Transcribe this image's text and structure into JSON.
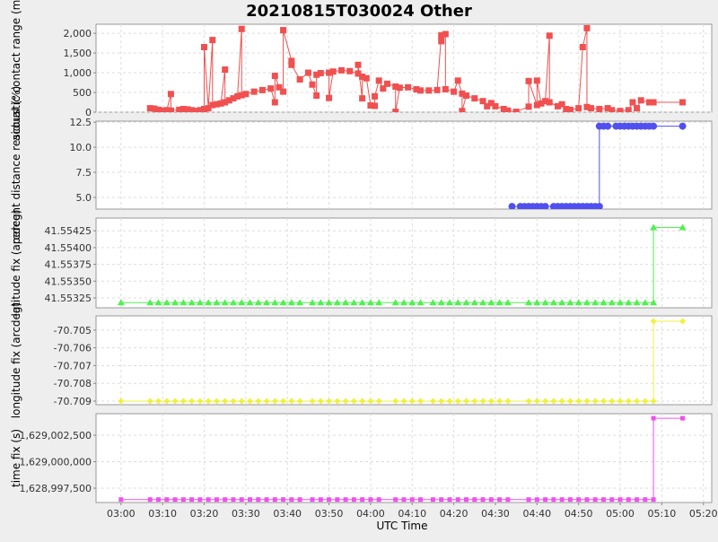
{
  "chart_data": [
    {
      "type": "line",
      "title": "20210815T030024 Other",
      "ylabel": "acoustic contact range (m)",
      "color": "#f05050",
      "marker": "square",
      "x": [
        "03:07",
        "03:08",
        "03:09",
        "03:10",
        "03:11",
        "03:12",
        "03:12",
        "03:14",
        "03:15",
        "03:16",
        "03:17",
        "03:18",
        "03:19",
        "03:20",
        "03:20",
        "03:21",
        "03:22",
        "03:22",
        "03:23",
        "03:24",
        "03:25",
        "03:25",
        "03:26",
        "03:27",
        "03:28",
        "03:29",
        "03:29",
        "03:30",
        "03:32",
        "03:34",
        "03:36",
        "03:37",
        "03:37",
        "03:38",
        "03:39",
        "03:39",
        "03:41",
        "03:41",
        "03:43",
        "03:45",
        "03:46",
        "03:47",
        "03:47",
        "03:48",
        "03:50",
        "03:50",
        "03:51",
        "03:53",
        "03:55",
        "03:57",
        "03:57",
        "03:58",
        "03:58",
        "03:59",
        "04:00",
        "04:01",
        "04:01",
        "04:02",
        "04:03",
        "04:04",
        "04:06",
        "04:06",
        "04:07",
        "04:09",
        "04:11",
        "04:12",
        "04:14",
        "04:16",
        "04:17",
        "04:17",
        "04:18",
        "04:18",
        "04:20",
        "04:21",
        "04:22",
        "04:22",
        "04:23",
        "04:25",
        "04:27",
        "04:28",
        "04:29",
        "04:30",
        "04:32",
        "04:33",
        "04:35",
        "04:38",
        "04:38",
        "04:40",
        "04:40",
        "04:41",
        "04:42",
        "04:43",
        "04:43",
        "04:45",
        "04:46",
        "04:47",
        "04:48",
        "04:50",
        "04:51",
        "04:52",
        "04:52",
        "04:53",
        "04:55",
        "04:57",
        "04:58",
        "05:00",
        "05:02",
        "05:03",
        "05:04",
        "05:05",
        "05:07",
        "05:08",
        "05:15"
      ],
      "values": [
        100,
        90,
        60,
        40,
        50,
        460,
        40,
        60,
        80,
        70,
        50,
        30,
        50,
        80,
        1650,
        100,
        1830,
        180,
        200,
        220,
        1080,
        250,
        300,
        350,
        400,
        2110,
        430,
        460,
        520,
        560,
        600,
        250,
        920,
        630,
        520,
        2080,
        1300,
        1200,
        830,
        1000,
        700,
        420,
        950,
        990,
        1000,
        360,
        1030,
        1060,
        1040,
        980,
        1200,
        350,
        900,
        860,
        170,
        160,
        400,
        800,
        600,
        720,
        650,
        10,
        620,
        630,
        580,
        550,
        550,
        560,
        1950,
        1800,
        1980,
        580,
        520,
        800,
        470,
        30,
        420,
        350,
        280,
        150,
        230,
        150,
        80,
        40,
        10,
        140,
        790,
        180,
        800,
        220,
        280,
        1940,
        250,
        150,
        200,
        80,
        60,
        100,
        1650,
        2130,
        130,
        100,
        80,
        100,
        50,
        30,
        50,
        250,
        100,
        300,
        250,
        250,
        250
      ],
      "ylim": [
        0,
        2230
      ],
      "yticks": [
        0,
        500,
        {
          "value": 1000,
          "label": "1,000"
        },
        {
          "value": 1500,
          "label": "1,500"
        },
        {
          "value": 2000,
          "label": "2,000"
        }
      ],
      "grid": true
    },
    {
      "type": "line",
      "ylabel": "percent distance residual (%)",
      "color": "#5050f0",
      "marker": "circle",
      "x": [
        "04:34",
        "04:36",
        "04:37",
        "04:38",
        "04:39",
        "04:40",
        "04:41",
        "04:42",
        "04:44",
        "04:45",
        "04:46",
        "04:47",
        "04:48",
        "04:49",
        "04:50",
        "04:51",
        "04:52",
        "04:53",
        "04:54",
        "04:55",
        "04:55",
        "04:56",
        "04:57",
        "04:59",
        "05:00",
        "05:01",
        "05:02",
        "05:03",
        "05:04",
        "05:05",
        "05:06",
        "05:07",
        "05:08",
        "05:15"
      ],
      "values": [
        4.1,
        4.1,
        4.1,
        4.1,
        4.1,
        4.1,
        4.1,
        4.1,
        4.1,
        4.1,
        4.1,
        4.1,
        4.1,
        4.1,
        4.1,
        4.1,
        4.1,
        4.1,
        4.1,
        4.1,
        12.1,
        12.1,
        12.1,
        12.1,
        12.1,
        12.1,
        12.1,
        12.1,
        12.1,
        12.1,
        12.1,
        12.1,
        12.1,
        12.1
      ],
      "ylim": [
        3.84,
        12.6
      ],
      "yticks": [
        {
          "value": 5,
          "label": "5.0"
        },
        7.5,
        {
          "value": 10,
          "label": "10.0"
        },
        12.5
      ],
      "grid": true
    },
    {
      "type": "line",
      "ylabel": "latitude fix (arcdeg)",
      "color": "#50f050",
      "marker": "triangle",
      "x": [
        "03:00",
        "03:07",
        "03:09",
        "03:11",
        "03:13",
        "03:15",
        "03:17",
        "03:19",
        "03:21",
        "03:23",
        "03:25",
        "03:27",
        "03:29",
        "03:31",
        "03:33",
        "03:35",
        "03:37",
        "03:39",
        "03:41",
        "03:43",
        "03:46",
        "03:48",
        "03:50",
        "03:52",
        "03:54",
        "03:56",
        "03:58",
        "04:00",
        "04:02",
        "04:06",
        "04:08",
        "04:10",
        "04:12",
        "04:15",
        "04:17",
        "04:19",
        "04:21",
        "04:23",
        "04:25",
        "04:27",
        "04:29",
        "04:31",
        "04:33",
        "04:38",
        "04:40",
        "04:42",
        "04:44",
        "04:46",
        "04:48",
        "04:50",
        "04:52",
        "04:54",
        "04:56",
        "04:58",
        "05:00",
        "05:02",
        "05:04",
        "05:06",
        "05:08",
        "05:08",
        "05:15"
      ],
      "values": [
        41.55318,
        41.55318,
        41.55318,
        41.55318,
        41.55318,
        41.55318,
        41.55318,
        41.55318,
        41.55318,
        41.55318,
        41.55318,
        41.55318,
        41.55318,
        41.55318,
        41.55318,
        41.55318,
        41.55318,
        41.55318,
        41.55318,
        41.55318,
        41.55318,
        41.55318,
        41.55318,
        41.55318,
        41.55318,
        41.55318,
        41.55318,
        41.55318,
        41.55318,
        41.55318,
        41.55318,
        41.55318,
        41.55318,
        41.55318,
        41.55318,
        41.55318,
        41.55318,
        41.55318,
        41.55318,
        41.55318,
        41.55318,
        41.55318,
        41.55318,
        41.55318,
        41.55318,
        41.55318,
        41.55318,
        41.55318,
        41.55318,
        41.55318,
        41.55318,
        41.55318,
        41.55318,
        41.55318,
        41.55318,
        41.55318,
        41.55318,
        41.55318,
        41.55318,
        41.5543,
        41.5543
      ],
      "ylim": [
        41.553103,
        41.55444
      ],
      "yticks": [
        41.55325,
        {
          "value": 41.5535,
          "label": "41.55350"
        },
        41.55375,
        {
          "value": 41.554,
          "label": "41.55400"
        },
        41.55425
      ],
      "grid": true
    },
    {
      "type": "line",
      "ylabel": "longitude fix (arcdeg)",
      "color": "#f0f040",
      "marker": "diamond",
      "x": [
        "03:00",
        "03:07",
        "03:09",
        "03:11",
        "03:13",
        "03:15",
        "03:17",
        "03:19",
        "03:21",
        "03:23",
        "03:25",
        "03:27",
        "03:29",
        "03:31",
        "03:33",
        "03:35",
        "03:37",
        "03:39",
        "03:41",
        "03:43",
        "03:46",
        "03:48",
        "03:50",
        "03:52",
        "03:54",
        "03:56",
        "03:58",
        "04:00",
        "04:02",
        "04:06",
        "04:08",
        "04:10",
        "04:12",
        "04:15",
        "04:17",
        "04:19",
        "04:21",
        "04:23",
        "04:25",
        "04:27",
        "04:29",
        "04:31",
        "04:33",
        "04:38",
        "04:40",
        "04:42",
        "04:44",
        "04:46",
        "04:48",
        "04:50",
        "04:52",
        "04:54",
        "04:56",
        "04:58",
        "05:00",
        "05:02",
        "05:04",
        "05:06",
        "05:08",
        "05:08",
        "05:15"
      ],
      "values": [
        -70.709,
        -70.709,
        -70.709,
        -70.709,
        -70.709,
        -70.709,
        -70.709,
        -70.709,
        -70.709,
        -70.709,
        -70.709,
        -70.709,
        -70.709,
        -70.709,
        -70.709,
        -70.709,
        -70.709,
        -70.709,
        -70.709,
        -70.709,
        -70.709,
        -70.709,
        -70.709,
        -70.709,
        -70.709,
        -70.709,
        -70.709,
        -70.709,
        -70.709,
        -70.709,
        -70.709,
        -70.709,
        -70.709,
        -70.709,
        -70.709,
        -70.709,
        -70.709,
        -70.709,
        -70.709,
        -70.709,
        -70.709,
        -70.709,
        -70.709,
        -70.709,
        -70.709,
        -70.709,
        -70.709,
        -70.709,
        -70.709,
        -70.709,
        -70.709,
        -70.709,
        -70.709,
        -70.709,
        -70.709,
        -70.709,
        -70.709,
        -70.709,
        -70.709,
        -70.7045,
        -70.7045
      ],
      "ylim": [
        -70.7092,
        -70.7042
      ],
      "yticks": [
        -70.709,
        -70.708,
        -70.707,
        -70.706,
        -70.705
      ],
      "grid": true
    },
    {
      "type": "line",
      "ylabel": "time fix (s)",
      "color": "#f050f0",
      "marker": "square",
      "x": [
        "03:00",
        "03:07",
        "03:09",
        "03:11",
        "03:13",
        "03:15",
        "03:17",
        "03:19",
        "03:21",
        "03:23",
        "03:25",
        "03:27",
        "03:29",
        "03:31",
        "03:33",
        "03:35",
        "03:37",
        "03:39",
        "03:41",
        "03:43",
        "03:46",
        "03:48",
        "03:50",
        "03:52",
        "03:54",
        "03:56",
        "03:58",
        "04:00",
        "04:02",
        "04:06",
        "04:08",
        "04:10",
        "04:12",
        "04:15",
        "04:17",
        "04:19",
        "04:21",
        "04:23",
        "04:25",
        "04:27",
        "04:29",
        "04:31",
        "04:33",
        "04:38",
        "04:40",
        "04:42",
        "04:44",
        "04:46",
        "04:48",
        "04:50",
        "04:52",
        "04:54",
        "04:56",
        "04:58",
        "05:00",
        "05:02",
        "05:04",
        "05:06",
        "05:08",
        "05:08",
        "05:15"
      ],
      "values": [
        1628996424,
        1628996424,
        1628996424,
        1628996424,
        1628996424,
        1628996424,
        1628996424,
        1628996424,
        1628996424,
        1628996424,
        1628996424,
        1628996424,
        1628996424,
        1628996424,
        1628996424,
        1628996424,
        1628996424,
        1628996424,
        1628996424,
        1628996424,
        1628996424,
        1628996424,
        1628996424,
        1628996424,
        1628996424,
        1628996424,
        1628996424,
        1628996424,
        1628996424,
        1628996424,
        1628996424,
        1628996424,
        1628996424,
        1628996424,
        1628996424,
        1628996424,
        1628996424,
        1628996424,
        1628996424,
        1628996424,
        1628996424,
        1628996424,
        1628996424,
        1628996424,
        1628996424,
        1628996424,
        1628996424,
        1628996424,
        1628996424,
        1628996424,
        1628996424,
        1628996424,
        1628996424,
        1628996424,
        1628996424,
        1628996424,
        1628996424,
        1628996424,
        1628996424,
        1629004104,
        1629004104
      ],
      "ylim": [
        1628996144,
        1629004534
      ],
      "yticks": [
        {
          "value": 1628997500,
          "label": "1,628,997,500"
        },
        {
          "value": 1629000000,
          "label": "1,629,000,000"
        },
        {
          "value": 1629002500,
          "label": "1,629,002,500"
        }
      ],
      "grid": true,
      "xlabel": "UTC Time",
      "xlim": [
        "02:54",
        "05:22"
      ],
      "xticks": [
        "03:00",
        "03:10",
        "03:20",
        "03:30",
        "03:40",
        "03:50",
        "04:00",
        "04:10",
        "04:20",
        "04:30",
        "04:40",
        "04:50",
        "05:00",
        "05:10",
        "05:20"
      ]
    }
  ]
}
